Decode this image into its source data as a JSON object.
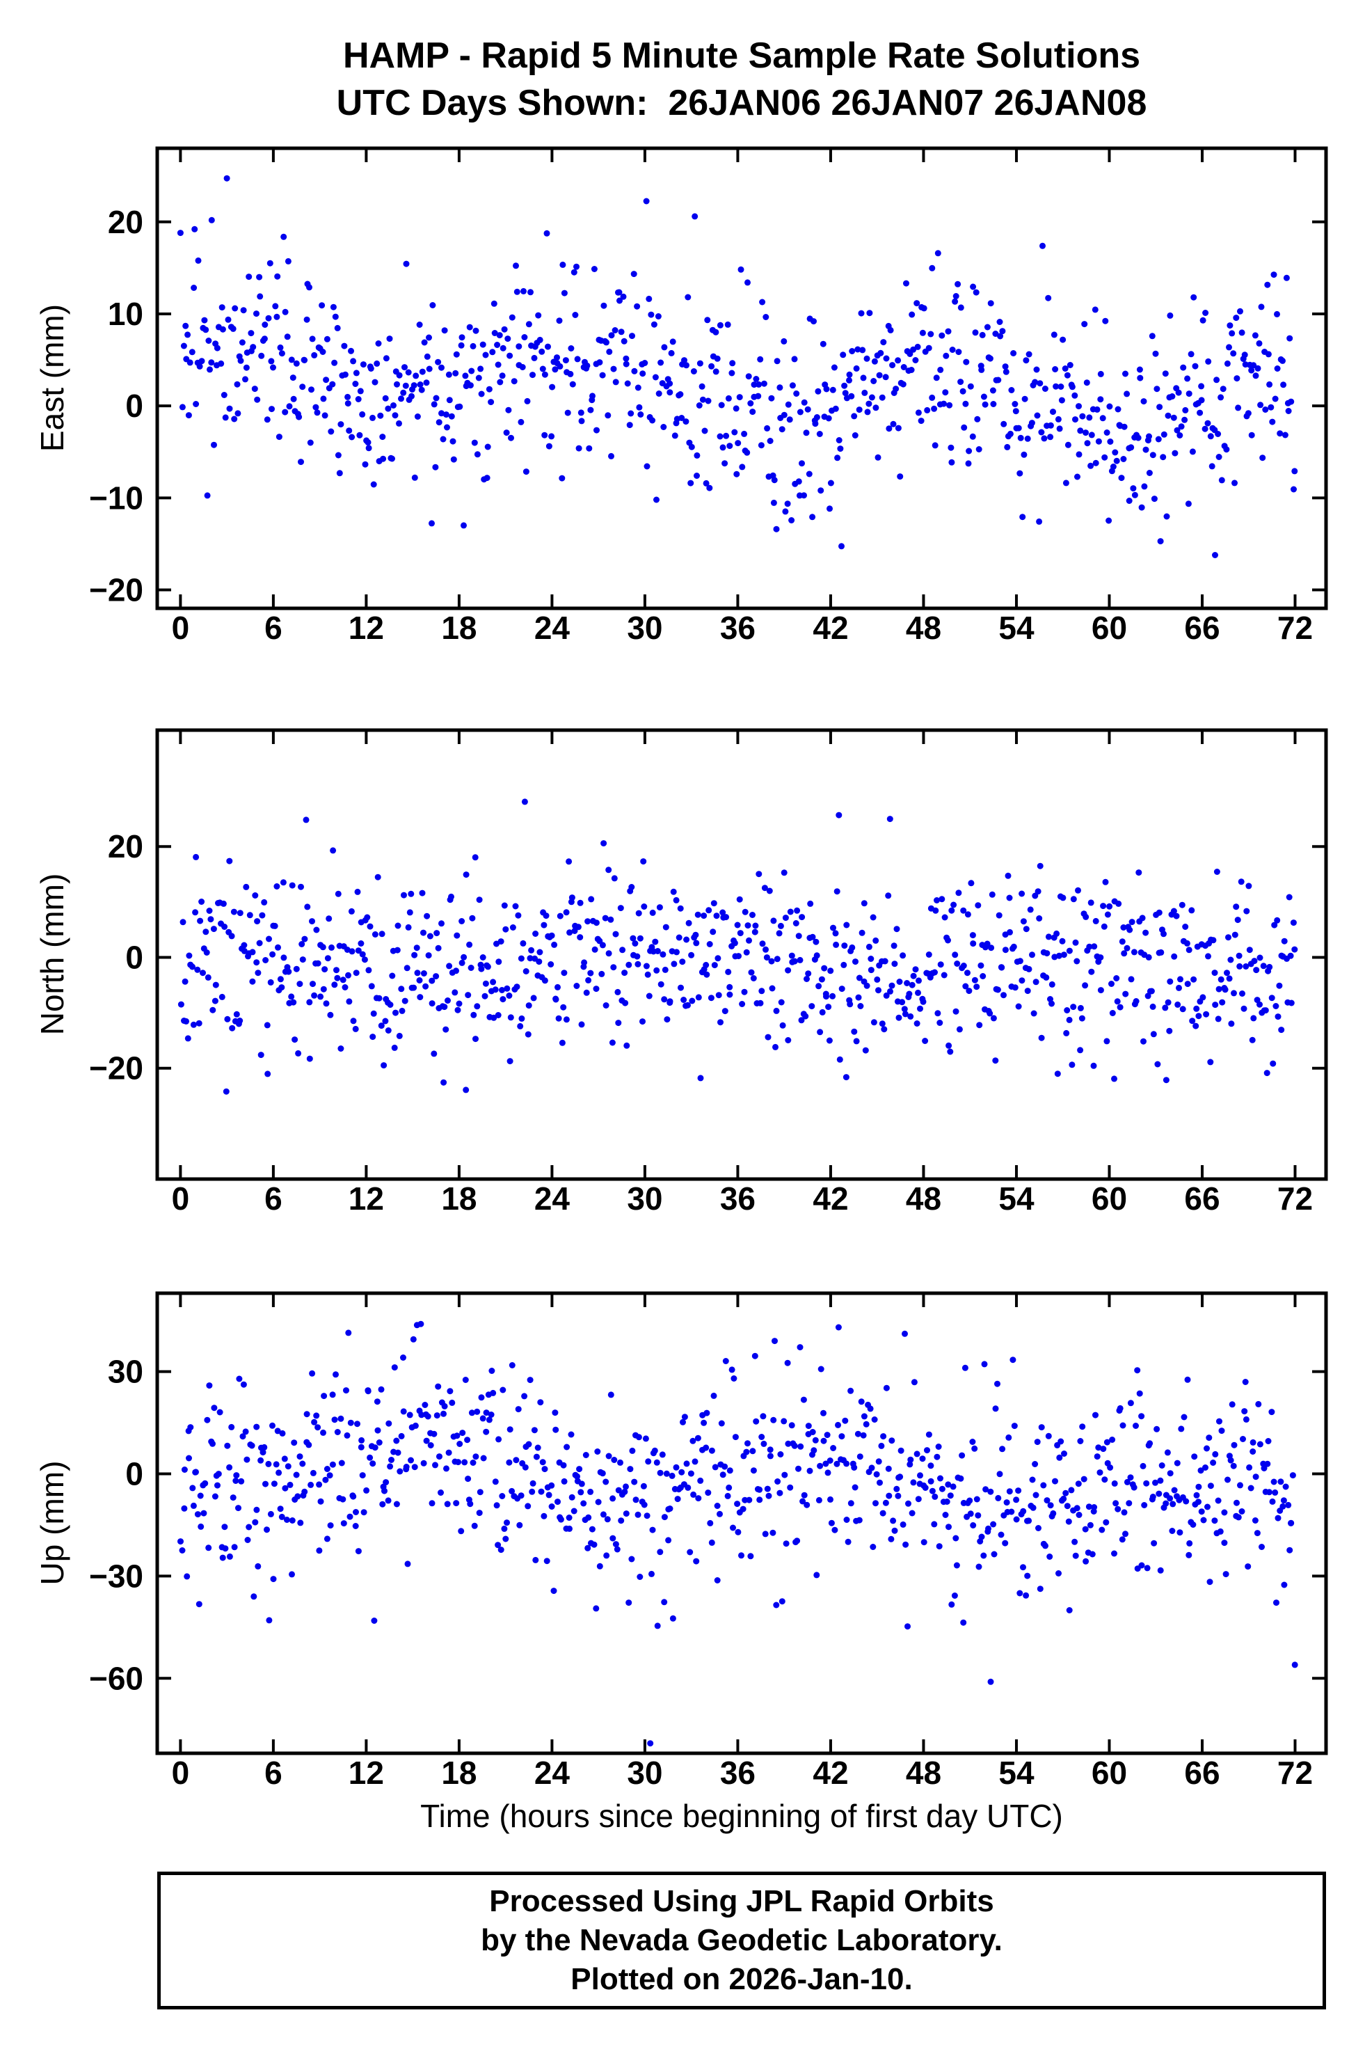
{
  "title": {
    "line1": "HAMP - Rapid 5 Minute Sample Rate Solutions",
    "line2": "UTC Days Shown:  26JAN06 26JAN07 26JAN08"
  },
  "xlabel": "Time (hours since beginning of first day UTC)",
  "footer": {
    "line1": "Processed Using JPL Rapid Orbits",
    "line2": "by the Nevada Geodetic Laboratory.",
    "line3": "Plotted on 2026-Jan-10."
  },
  "point_color": "#0000EE",
  "frame_color": "#000000",
  "chart_data": [
    {
      "type": "scatter",
      "name": "east",
      "ylabel": "East (mm)",
      "ylim": [
        -22,
        28
      ],
      "yticks": [
        -20,
        -10,
        0,
        10,
        20
      ],
      "xlim": [
        -1.5,
        74
      ],
      "xticks": [
        0,
        6,
        12,
        18,
        24,
        30,
        36,
        42,
        48,
        54,
        60,
        66,
        72
      ],
      "x_range": [
        0,
        72
      ],
      "n_points": 820,
      "seed": 7,
      "mean_start": 4.5,
      "slope_per_hour": -0.06,
      "std": 5.2,
      "wave_amp": 2.5,
      "wave_period": 24,
      "wave_phase": -4,
      "outlier_prob": 0.025,
      "outlier_scale": 2.2
    },
    {
      "type": "scatter",
      "name": "north",
      "ylabel": "North (mm)",
      "ylim": [
        -40,
        41
      ],
      "yticks": [
        -20,
        0,
        20
      ],
      "xlim": [
        -1.5,
        74
      ],
      "xticks": [
        0,
        6,
        12,
        18,
        24,
        30,
        36,
        42,
        48,
        54,
        60,
        66,
        72
      ],
      "x_range": [
        0,
        72
      ],
      "n_points": 820,
      "seed": 11,
      "mean_start": -1.5,
      "slope_per_hour": 0.0,
      "std": 8.0,
      "wave_amp": 1.5,
      "wave_period": 24,
      "wave_phase": 0,
      "outlier_prob": 0.03,
      "outlier_scale": 2.3
    },
    {
      "type": "scatter",
      "name": "up",
      "ylabel": "Up (mm)",
      "ylim": [
        -82,
        53
      ],
      "yticks": [
        -60,
        -30,
        0,
        30
      ],
      "xlim": [
        -1.5,
        74
      ],
      "xticks": [
        0,
        6,
        12,
        18,
        24,
        30,
        36,
        42,
        48,
        54,
        60,
        66,
        72
      ],
      "x_range": [
        0,
        72
      ],
      "n_points": 820,
      "seed": 23,
      "mean_start": 4.0,
      "slope_per_hour": -0.17,
      "std": 13.0,
      "wave_amp": 7,
      "wave_period": 24,
      "wave_phase": 10,
      "outlier_prob": 0.035,
      "outlier_scale": 2.0
    }
  ]
}
